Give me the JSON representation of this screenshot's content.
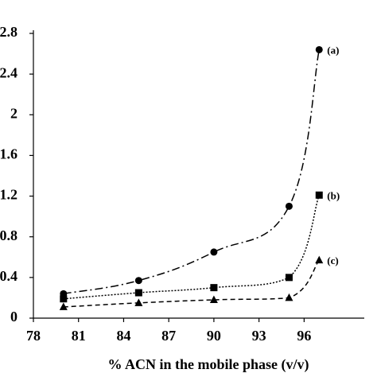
{
  "chart_data": {
    "type": "line",
    "x_label": "% ACN in the mobile phase (v/v)",
    "x": [
      80,
      85,
      90,
      95,
      97
    ],
    "series": [
      {
        "name": "(a)",
        "color": "#000000",
        "dash": "10 4 2 4",
        "marker": "circle",
        "values": [
          0.24,
          0.37,
          0.65,
          1.1,
          2.64
        ]
      },
      {
        "name": "(b)",
        "color": "#000000",
        "dash": "2 2",
        "marker": "square",
        "values": [
          0.19,
          0.25,
          0.3,
          0.4,
          1.21
        ]
      },
      {
        "name": "(c)",
        "color": "#000000",
        "dash": "6 4",
        "marker": "triangle",
        "values": [
          0.11,
          0.15,
          0.18,
          0.2,
          0.57
        ]
      }
    ],
    "xlim": [
      78,
      100
    ],
    "xticks": [
      78,
      81,
      84,
      87,
      90,
      93,
      96
    ],
    "ylim": [
      0,
      2.8
    ],
    "yticks": [
      0,
      0.4,
      0.8,
      1.2,
      1.6,
      2,
      2.4,
      2.8
    ]
  }
}
